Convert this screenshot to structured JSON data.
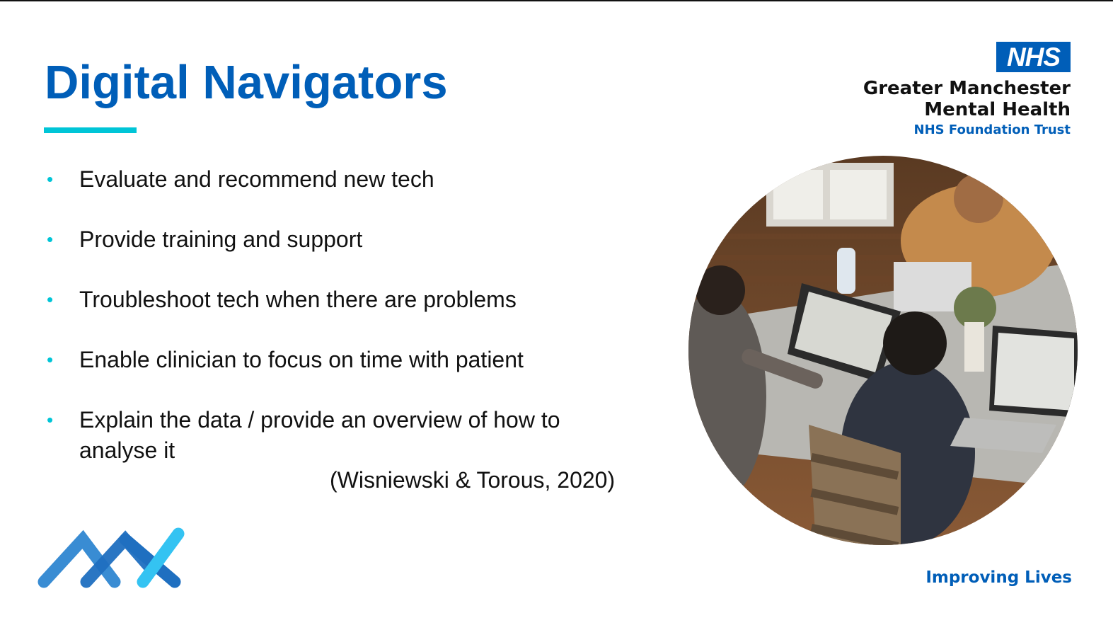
{
  "slide": {
    "title": "Digital Navigators",
    "bullets": [
      "Evaluate and recommend new tech",
      "Provide training and support",
      "Troubleshoot tech when there are problems",
      "Enable clinician to focus on time with patient",
      "Explain the data / provide an overview of how to analyse it"
    ],
    "citation": "(Wisniewski & Torous, 2020)"
  },
  "branding": {
    "nhs_logo_text": "NHS",
    "org_line_1": "Greater Manchester",
    "org_line_2": "Mental Health",
    "org_line_3": "NHS Foundation Trust",
    "tagline": "Improving Lives"
  },
  "icons": {
    "bullet_marker": "•"
  },
  "colors": {
    "nhs_blue": "#005EB8",
    "accent_cyan": "#00C5D7",
    "text": "#111111"
  }
}
